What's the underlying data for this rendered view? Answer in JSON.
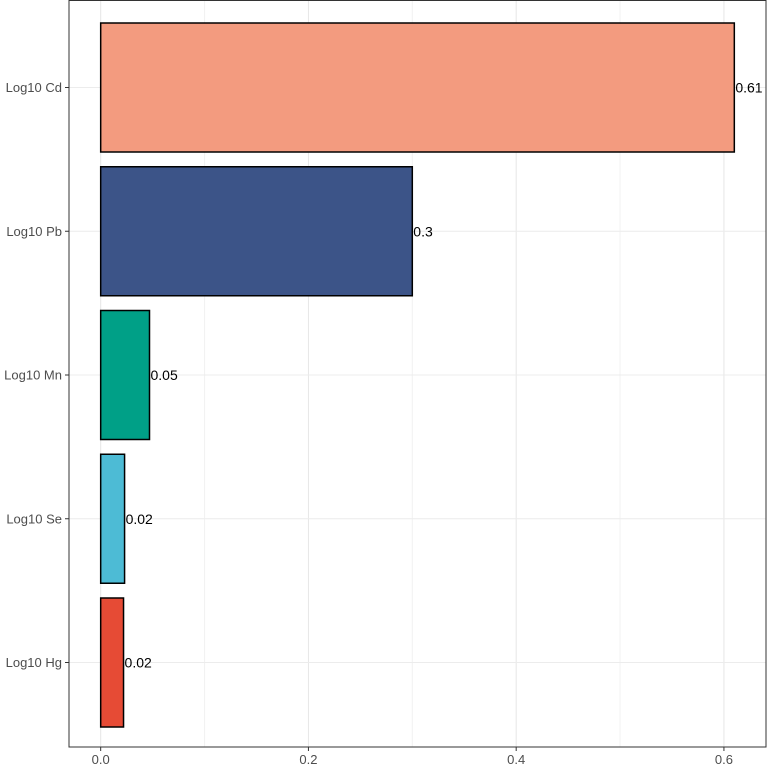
{
  "chart_data": {
    "type": "bar",
    "orientation": "horizontal",
    "categories": [
      "Log10 Cd",
      "Log10 Pb",
      "Log10 Mn",
      "Log10 Se",
      "Log10 Hg"
    ],
    "values": [
      0.61,
      0.3,
      0.047,
      0.023,
      0.022
    ],
    "data_labels": [
      "0.61",
      "0.3",
      "0.05",
      "0.02",
      "0.02"
    ],
    "colors": [
      "#F39B7F",
      "#3C5488",
      "#00A087",
      "#4DBBD5",
      "#E64B35"
    ],
    "xticks": [
      0.0,
      0.2,
      0.4,
      0.6
    ],
    "xtick_labels": [
      "0.0",
      "0.2",
      "0.4",
      "0.6"
    ],
    "xlim": [
      -0.0305,
      0.6405
    ],
    "title": "",
    "xlabel": "",
    "ylabel": "",
    "grid": true,
    "legend": false
  }
}
